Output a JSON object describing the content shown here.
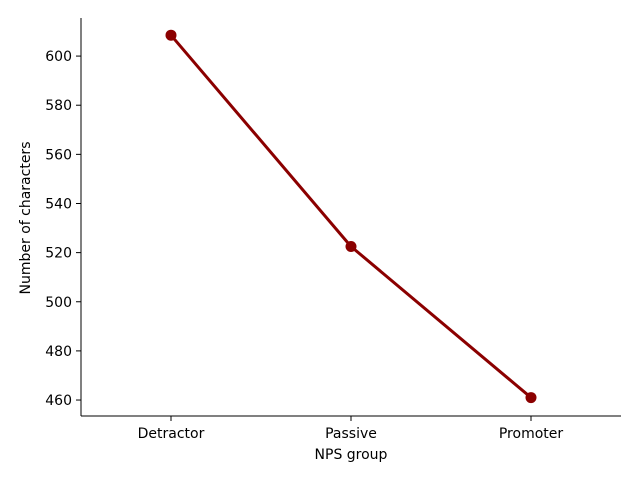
{
  "chart_data": {
    "type": "line",
    "title": "",
    "xlabel": "NPS group",
    "ylabel": "Number of characters",
    "categories": [
      "Detractor",
      "Passive",
      "Promoter"
    ],
    "series": [
      {
        "values": [
          608.5,
          522.5,
          461.0
        ],
        "color": "#8b0000"
      }
    ],
    "ylim": [
      453.5,
      615.5
    ],
    "yticks": [
      460,
      480,
      500,
      520,
      540,
      560,
      580,
      600
    ],
    "grid": false,
    "legend": "none"
  }
}
